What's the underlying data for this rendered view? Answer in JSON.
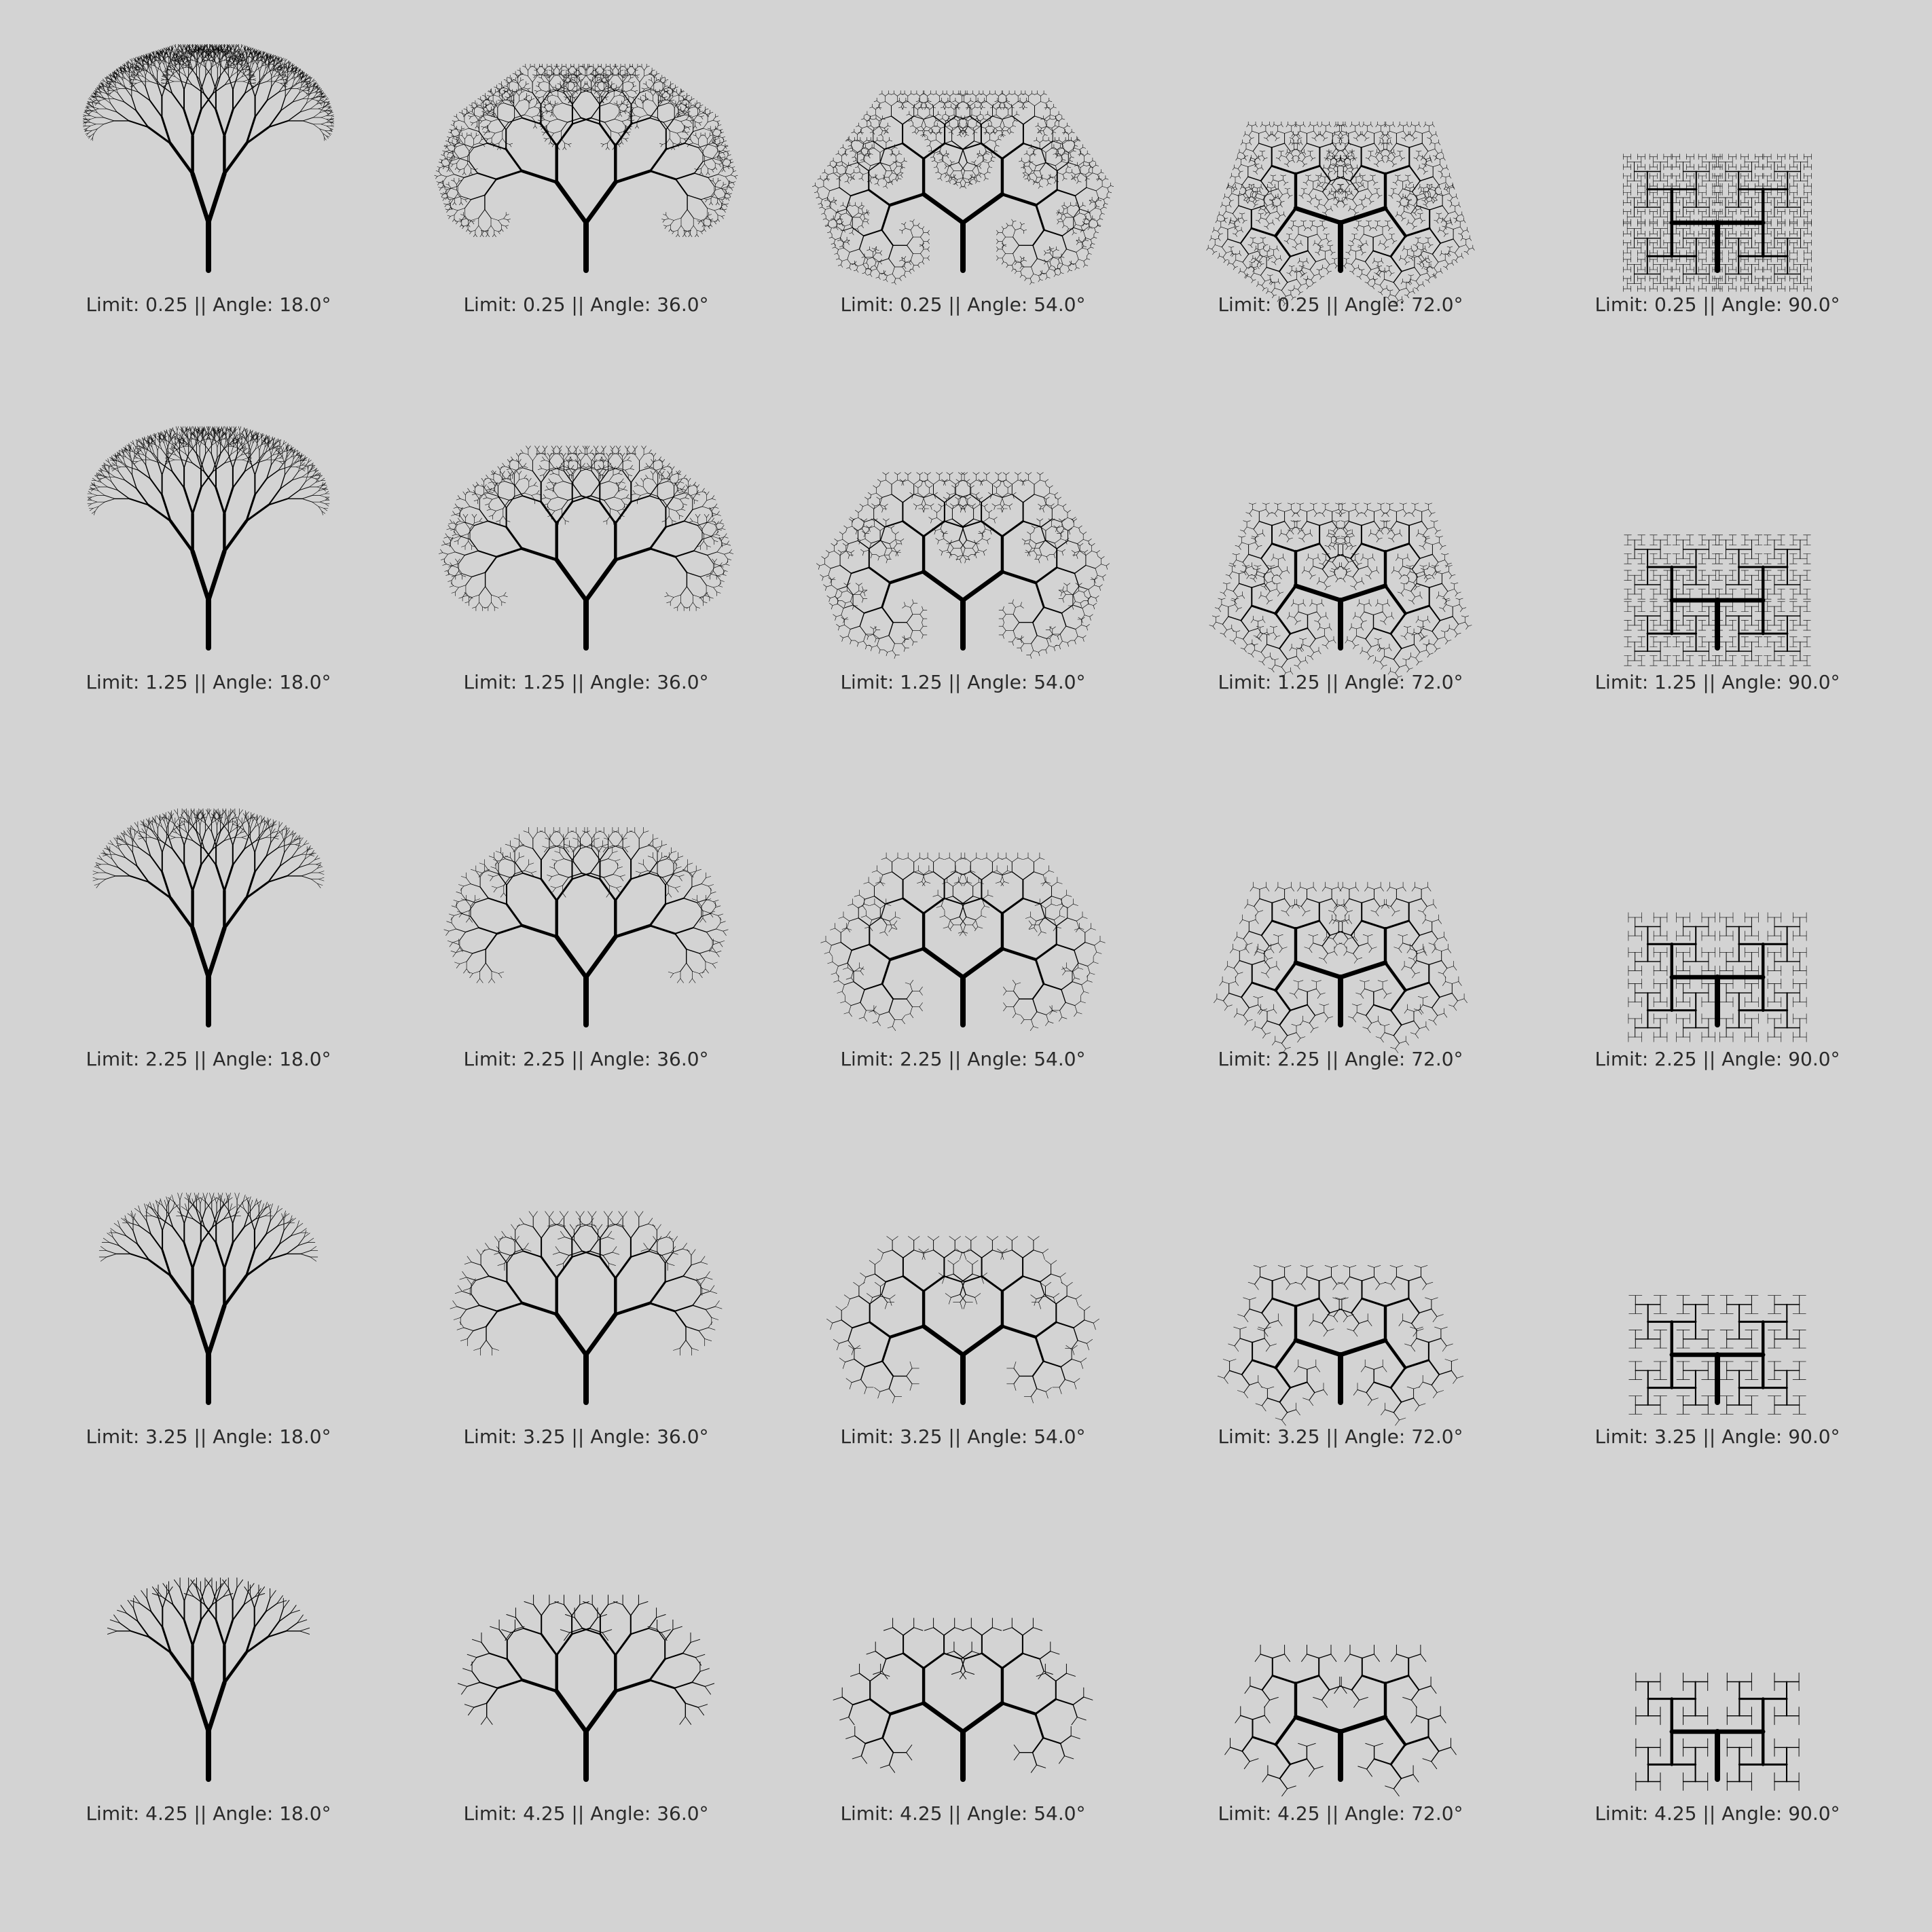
{
  "colors": {
    "background": "#d3d3d3",
    "tree": "#000000",
    "caption": "#2a2a2a"
  },
  "caption_template": {
    "limit_prefix": "Limit: ",
    "separator": " || ",
    "angle_prefix": "Angle: ",
    "angle_suffix": "°"
  },
  "panels": [
    {
      "limit": "0.25",
      "angle": "18.0",
      "caption": "Limit: 0.25 || Angle: 18.0°"
    },
    {
      "limit": "0.25",
      "angle": "36.0",
      "caption": "Limit: 0.25 || Angle: 36.0°"
    },
    {
      "limit": "0.25",
      "angle": "54.0",
      "caption": "Limit: 0.25 || Angle: 54.0°"
    },
    {
      "limit": "0.25",
      "angle": "72.0",
      "caption": "Limit: 0.25 || Angle: 72.0°"
    },
    {
      "limit": "0.25",
      "angle": "90.0",
      "caption": "Limit: 0.25 || Angle: 90.0°"
    },
    {
      "limit": "1.25",
      "angle": "18.0",
      "caption": "Limit: 1.25 || Angle: 18.0°"
    },
    {
      "limit": "1.25",
      "angle": "36.0",
      "caption": "Limit: 1.25 || Angle: 36.0°"
    },
    {
      "limit": "1.25",
      "angle": "54.0",
      "caption": "Limit: 1.25 || Angle: 54.0°"
    },
    {
      "limit": "1.25",
      "angle": "72.0",
      "caption": "Limit: 1.25 || Angle: 72.0°"
    },
    {
      "limit": "1.25",
      "angle": "90.0",
      "caption": "Limit: 1.25 || Angle: 90.0°"
    },
    {
      "limit": "2.25",
      "angle": "18.0",
      "caption": "Limit: 2.25 || Angle: 18.0°"
    },
    {
      "limit": "2.25",
      "angle": "36.0",
      "caption": "Limit: 2.25 || Angle: 36.0°"
    },
    {
      "limit": "2.25",
      "angle": "54.0",
      "caption": "Limit: 2.25 || Angle: 54.0°"
    },
    {
      "limit": "2.25",
      "angle": "72.0",
      "caption": "Limit: 2.25 || Angle: 72.0°"
    },
    {
      "limit": "2.25",
      "angle": "90.0",
      "caption": "Limit: 2.25 || Angle: 90.0°"
    },
    {
      "limit": "3.25",
      "angle": "18.0",
      "caption": "Limit: 3.25 || Angle: 18.0°"
    },
    {
      "limit": "3.25",
      "angle": "36.0",
      "caption": "Limit: 3.25 || Angle: 36.0°"
    },
    {
      "limit": "3.25",
      "angle": "54.0",
      "caption": "Limit: 3.25 || Angle: 54.0°"
    },
    {
      "limit": "3.25",
      "angle": "72.0",
      "caption": "Limit: 3.25 || Angle: 72.0°"
    },
    {
      "limit": "3.25",
      "angle": "90.0",
      "caption": "Limit: 3.25 || Angle: 90.0°"
    },
    {
      "limit": "4.25",
      "angle": "18.0",
      "caption": "Limit: 4.25 || Angle: 18.0°"
    },
    {
      "limit": "4.25",
      "angle": "36.0",
      "caption": "Limit: 4.25 || Angle: 36.0°"
    },
    {
      "limit": "4.25",
      "angle": "54.0",
      "caption": "Limit: 4.25 || Angle: 54.0°"
    },
    {
      "limit": "4.25",
      "angle": "72.0",
      "caption": "Limit: 4.25 || Angle: 72.0°"
    },
    {
      "limit": "4.25",
      "angle": "90.0",
      "caption": "Limit: 4.25 || Angle: 90.0°"
    }
  ]
}
